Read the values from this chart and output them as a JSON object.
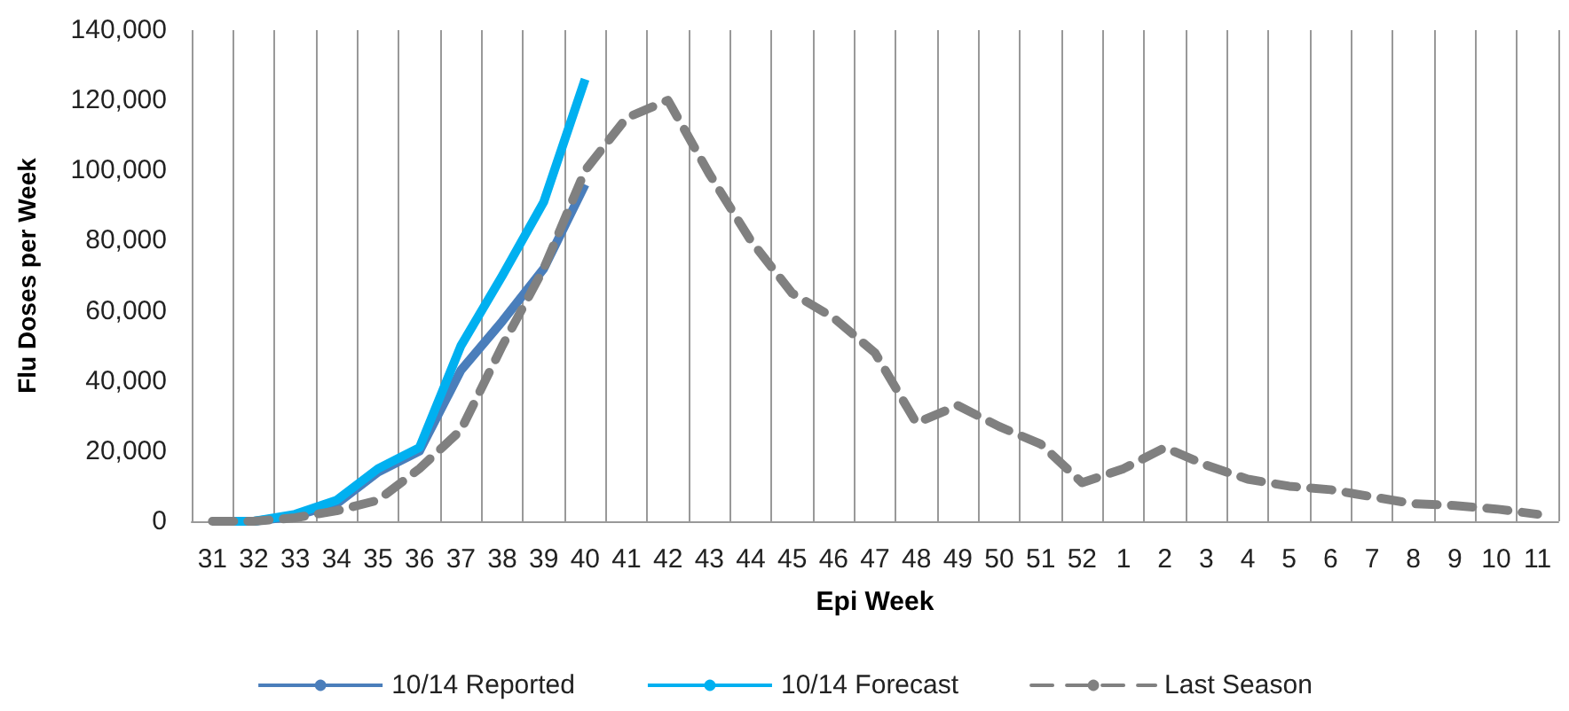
{
  "chart_data": {
    "type": "line",
    "xlabel": "Epi Week",
    "ylabel": "Flu Doses per Week",
    "categories": [
      "31",
      "32",
      "33",
      "34",
      "35",
      "36",
      "37",
      "38",
      "39",
      "40",
      "41",
      "42",
      "43",
      "44",
      "45",
      "46",
      "47",
      "48",
      "49",
      "50",
      "51",
      "52",
      "1",
      "2",
      "3",
      "4",
      "5",
      "6",
      "7",
      "8",
      "9",
      "10",
      "11"
    ],
    "series": [
      {
        "name": "10/14 Reported",
        "color": "#4a7ebb",
        "line_style": "solid",
        "values": [
          0,
          0,
          1500,
          5000,
          14000,
          20000,
          43000,
          57000,
          72000,
          96000,
          null,
          null,
          null,
          null,
          null,
          null,
          null,
          null,
          null,
          null,
          null,
          null,
          null,
          null,
          null,
          null,
          null,
          null,
          null,
          null,
          null,
          null,
          null
        ]
      },
      {
        "name": "10/14 Forecast",
        "color": "#00b0f0",
        "line_style": "solid",
        "values": [
          0,
          0,
          2000,
          6000,
          15000,
          21000,
          50000,
          70000,
          91000,
          126000,
          null,
          null,
          null,
          null,
          null,
          null,
          null,
          null,
          null,
          null,
          null,
          null,
          null,
          null,
          null,
          null,
          null,
          null,
          null,
          null,
          null,
          null,
          null
        ]
      },
      {
        "name": "Last Season",
        "color": "#808080",
        "line_style": "dashed",
        "values": [
          0,
          0,
          1000,
          3000,
          6000,
          15000,
          26000,
          50000,
          72000,
          100000,
          115000,
          120000,
          99000,
          80000,
          65000,
          58000,
          48000,
          28000,
          33000,
          27000,
          22000,
          11000,
          15000,
          21000,
          16000,
          12000,
          10000,
          9000,
          7000,
          5000,
          4500,
          3500,
          2000
        ]
      }
    ],
    "ylim": [
      0,
      140000
    ],
    "yticks": [
      0,
      {
        "value": 20000,
        "label": "20,000"
      },
      {
        "value": 40000,
        "label": "40,000"
      },
      {
        "value": 60000,
        "label": "60,000"
      },
      {
        "value": 80000,
        "label": "80,000"
      },
      {
        "value": 100000,
        "label": "100,000"
      },
      {
        "value": 120000,
        "label": "120,000"
      },
      {
        "value": 140000,
        "label": "140,000"
      }
    ],
    "grid": "x",
    "legend": "bottom",
    "marker": "none"
  }
}
